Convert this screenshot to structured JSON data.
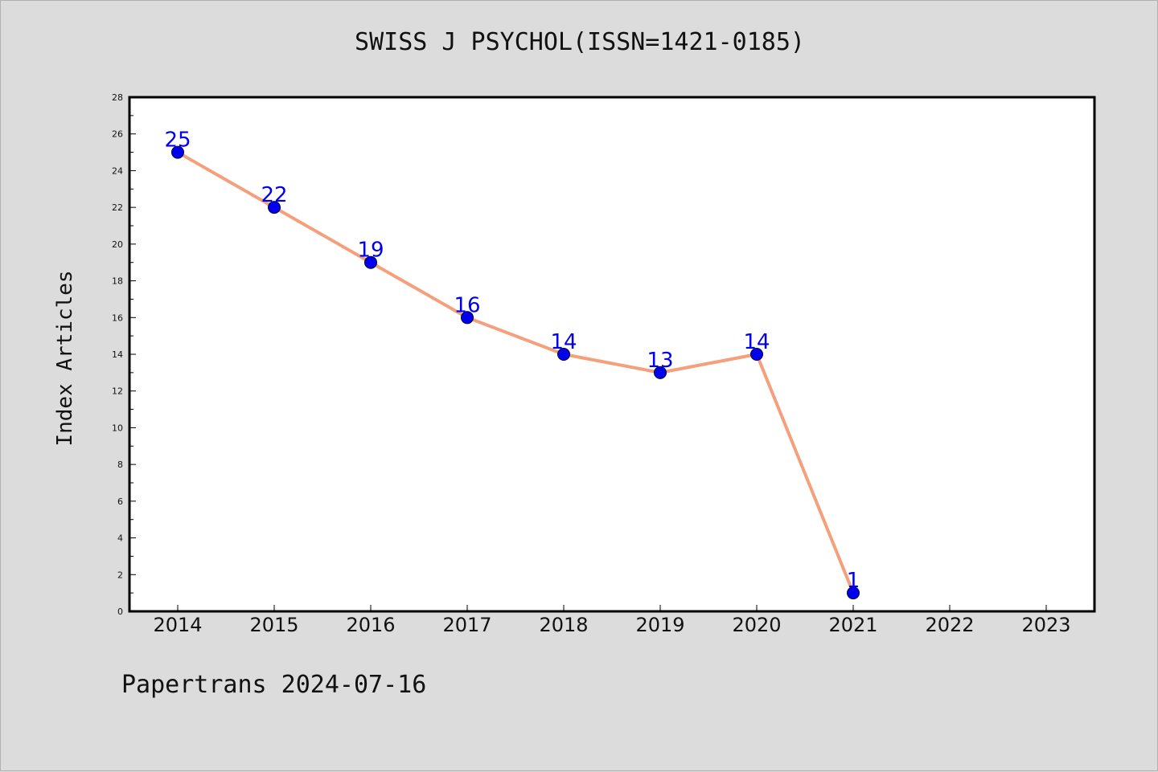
{
  "chart_data": {
    "type": "line",
    "title": "SWISS J PSYCHOL(ISSN=1421-0185)",
    "xlabel": "",
    "ylabel": "Index Articles",
    "categories": [
      "2014",
      "2015",
      "2016",
      "2017",
      "2018",
      "2019",
      "2020",
      "2021",
      "2022",
      "2023"
    ],
    "series": [
      {
        "values": [
          25,
          22,
          19,
          16,
          14,
          13,
          14,
          1,
          null,
          null
        ]
      }
    ],
    "ylim": [
      0,
      28
    ],
    "yticks": [
      0,
      2,
      4,
      6,
      8,
      10,
      12,
      14,
      16,
      18,
      20,
      22,
      24,
      26,
      28
    ],
    "grid": false,
    "line_color": "#f4a07c",
    "marker_color": "#0000ee",
    "label_color": "#0000ee"
  },
  "footer": {
    "text": "Papertrans 2024-07-16"
  }
}
